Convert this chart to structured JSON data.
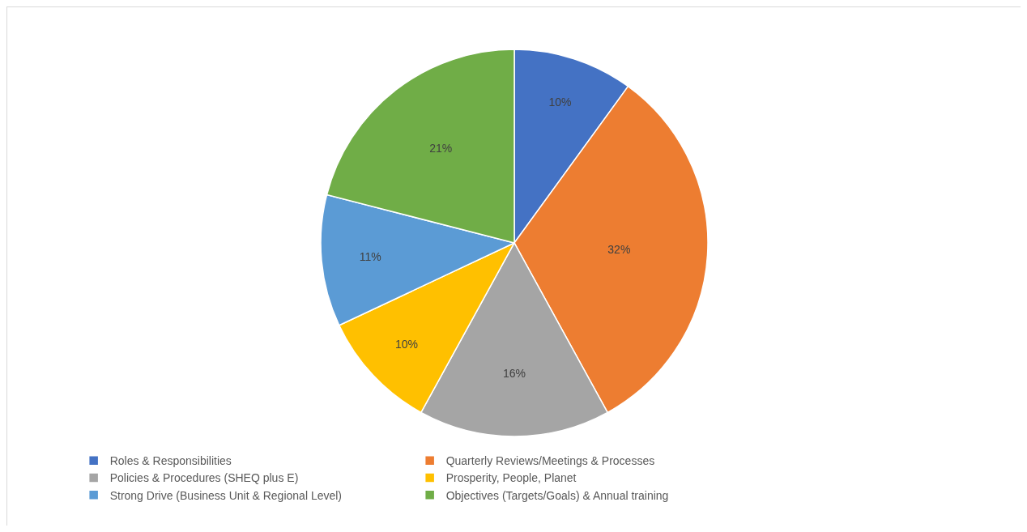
{
  "chart_data": {
    "type": "pie",
    "categories": [
      "Roles & Responsibilities",
      "Quarterly Reviews/Meetings & Processes",
      "Policies & Procedures (SHEQ plus E)",
      "Prosperity, People, Planet",
      "Strong Drive (Business Unit & Regional Level)",
      "Objectives (Targets/Goals) & Annual training"
    ],
    "values": [
      10,
      32,
      16,
      10,
      11,
      21
    ],
    "value_labels": [
      "10%",
      "32%",
      "16%",
      "10%",
      "11%",
      "21%"
    ],
    "colors": [
      "#4472c4",
      "#ed7d31",
      "#a5a5a5",
      "#ffc000",
      "#5b9bd5",
      "#70ad47"
    ],
    "legend": "bottom"
  }
}
